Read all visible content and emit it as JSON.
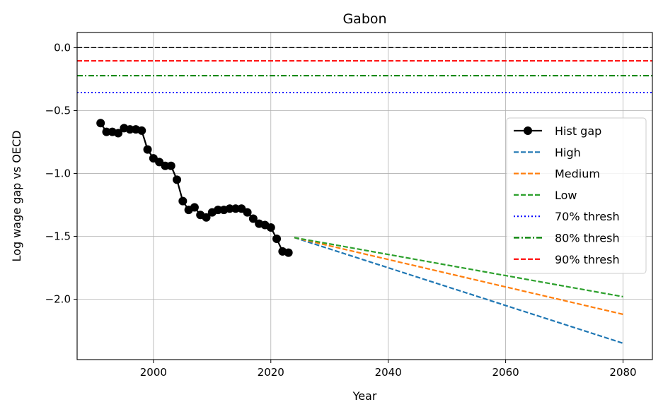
{
  "chart_data": {
    "type": "line",
    "title": "Gabon",
    "xlabel": "Year",
    "ylabel": "Log wage gap vs OECD",
    "xlim": [
      1987,
      2085
    ],
    "ylim": [
      -2.48,
      0.12
    ],
    "xticks": [
      2000,
      2020,
      2040,
      2060,
      2080
    ],
    "xtick_labels": [
      "2000",
      "2020",
      "2040",
      "2060",
      "2080"
    ],
    "yticks": [
      0.0,
      -0.5,
      -1.0,
      -1.5,
      -2.0
    ],
    "ytick_labels": [
      "0.0",
      "−0.5",
      "−1.0",
      "−1.5",
      "−2.0"
    ],
    "grid": true,
    "legend_position": "center-right",
    "hlines": [
      {
        "y": 0.0,
        "color": "#000000",
        "style": "dashed",
        "width": 1.2,
        "in_legend": false
      },
      {
        "y": -0.105,
        "name": "90% thresh",
        "color": "#ff0000",
        "style": "dashed",
        "width": 2
      },
      {
        "y": -0.223,
        "name": "80% thresh",
        "color": "#008000",
        "style": "dashdot",
        "width": 2
      },
      {
        "y": -0.357,
        "name": "70% thresh",
        "color": "#0000ff",
        "style": "dotted",
        "width": 2
      }
    ],
    "series": [
      {
        "name": "Hist gap",
        "color": "#000000",
        "style": "solid-marker",
        "x": [
          1991,
          1992,
          1993,
          1994,
          1995,
          1996,
          1997,
          1998,
          1999,
          2000,
          2001,
          2002,
          2003,
          2004,
          2005,
          2006,
          2007,
          2008,
          2009,
          2010,
          2011,
          2012,
          2013,
          2014,
          2015,
          2016,
          2017,
          2018,
          2019,
          2020,
          2021,
          2022,
          2023
        ],
        "y": [
          -0.6,
          -0.67,
          -0.67,
          -0.68,
          -0.64,
          -0.65,
          -0.65,
          -0.66,
          -0.81,
          -0.88,
          -0.91,
          -0.94,
          -0.94,
          -1.05,
          -1.22,
          -1.29,
          -1.27,
          -1.33,
          -1.35,
          -1.31,
          -1.29,
          -1.29,
          -1.28,
          -1.28,
          -1.28,
          -1.31,
          -1.36,
          -1.4,
          -1.41,
          -1.43,
          -1.52,
          -1.62,
          -1.63
        ]
      },
      {
        "name": "High",
        "color": "#1f77b4",
        "style": "dashed",
        "x": [
          2024,
          2080
        ],
        "y": [
          -1.51,
          -2.35
        ]
      },
      {
        "name": "Medium",
        "color": "#ff7f0e",
        "style": "dashed",
        "x": [
          2024,
          2080
        ],
        "y": [
          -1.51,
          -2.12
        ]
      },
      {
        "name": "Low",
        "color": "#2ca02c",
        "style": "dashed",
        "x": [
          2024,
          2080
        ],
        "y": [
          -1.51,
          -1.98
        ]
      }
    ],
    "legend": [
      {
        "label": "Hist gap",
        "color": "#000000",
        "style": "solid-marker"
      },
      {
        "label": "High",
        "color": "#1f77b4",
        "style": "dashed"
      },
      {
        "label": "Medium",
        "color": "#ff7f0e",
        "style": "dashed"
      },
      {
        "label": "Low",
        "color": "#2ca02c",
        "style": "dashed"
      },
      {
        "label": "70% thresh",
        "color": "#0000ff",
        "style": "dotted"
      },
      {
        "label": "80% thresh",
        "color": "#008000",
        "style": "dashdot"
      },
      {
        "label": "90% thresh",
        "color": "#ff0000",
        "style": "dashed"
      }
    ]
  }
}
